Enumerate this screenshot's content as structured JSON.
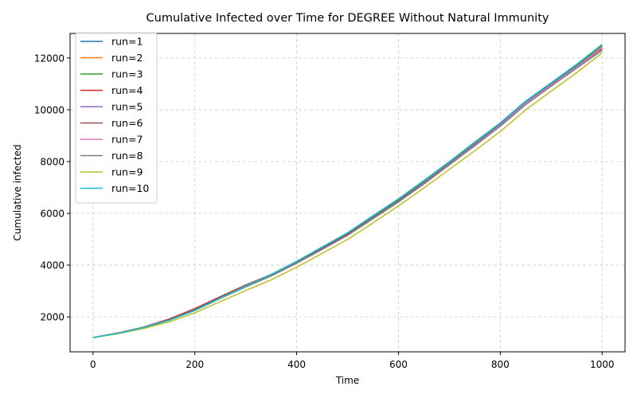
{
  "chart_data": {
    "type": "line",
    "title": "Cumulative Infected over Time for DEGREE Without Natural Immunity",
    "xlabel": "Time",
    "ylabel": "Cumulative infected",
    "xlim": [
      -45,
      1045
    ],
    "ylim": [
      650,
      12950
    ],
    "xticks": [
      0,
      200,
      400,
      600,
      800,
      1000
    ],
    "yticks": [
      2000,
      4000,
      6000,
      8000,
      10000,
      12000
    ],
    "grid": true,
    "legend_position": "top-left",
    "x": [
      0,
      50,
      100,
      150,
      200,
      250,
      300,
      350,
      400,
      450,
      500,
      550,
      600,
      650,
      700,
      750,
      800,
      850,
      900,
      950,
      1000
    ],
    "series": [
      {
        "name": "run=1",
        "color": "#1f77b4",
        "values": [
          1200,
          1380,
          1600,
          1880,
          2250,
          2720,
          3180,
          3600,
          4100,
          4650,
          5200,
          5850,
          6500,
          7200,
          7950,
          8700,
          9450,
          10300,
          11000,
          11700,
          12500
        ]
      },
      {
        "name": "run=2",
        "color": "#ff7f0e",
        "values": [
          1200,
          1380,
          1600,
          1890,
          2270,
          2740,
          3200,
          3620,
          4120,
          4660,
          5210,
          5860,
          6510,
          7210,
          7950,
          8700,
          9460,
          10300,
          11000,
          11700,
          12450
        ]
      },
      {
        "name": "run=3",
        "color": "#2ca02c",
        "values": [
          1200,
          1380,
          1610,
          1900,
          2290,
          2760,
          3220,
          3640,
          4140,
          4680,
          5230,
          5880,
          6530,
          7240,
          7980,
          8730,
          9480,
          10330,
          11020,
          11720,
          12500
        ]
      },
      {
        "name": "run=4",
        "color": "#d62728",
        "values": [
          1200,
          1380,
          1610,
          1920,
          2320,
          2780,
          3230,
          3640,
          4130,
          4660,
          5200,
          5840,
          6480,
          7170,
          7910,
          8650,
          9400,
          10240,
          10950,
          11650,
          12350
        ]
      },
      {
        "name": "run=5",
        "color": "#9467bd",
        "values": [
          1200,
          1370,
          1600,
          1890,
          2280,
          2750,
          3200,
          3620,
          4120,
          4650,
          5190,
          5840,
          6490,
          7190,
          7930,
          8680,
          9430,
          10270,
          10980,
          11680,
          12400
        ]
      },
      {
        "name": "run=6",
        "color": "#8c564b",
        "values": [
          1200,
          1380,
          1600,
          1900,
          2300,
          2760,
          3210,
          3620,
          4110,
          4640,
          5180,
          5820,
          6470,
          7160,
          7900,
          8640,
          9390,
          10230,
          10940,
          11640,
          12350
        ]
      },
      {
        "name": "run=7",
        "color": "#e377c2",
        "values": [
          1200,
          1370,
          1590,
          1870,
          2250,
          2710,
          3160,
          3580,
          4070,
          4600,
          5150,
          5790,
          6440,
          7140,
          7880,
          8630,
          9390,
          10240,
          10950,
          11650,
          12380
        ]
      },
      {
        "name": "run=8",
        "color": "#7f7f7f",
        "values": [
          1200,
          1370,
          1590,
          1870,
          2250,
          2710,
          3160,
          3580,
          4080,
          4610,
          5150,
          5790,
          6440,
          7130,
          7870,
          8610,
          9360,
          10200,
          10910,
          11610,
          12300
        ]
      },
      {
        "name": "run=9",
        "color": "#bcbd22",
        "values": [
          1200,
          1350,
          1550,
          1810,
          2160,
          2590,
          3020,
          3430,
          3920,
          4450,
          4990,
          5630,
          6290,
          6980,
          7700,
          8420,
          9160,
          10000,
          10720,
          11440,
          12200
        ]
      },
      {
        "name": "run=10",
        "color": "#17becf",
        "values": [
          1200,
          1370,
          1590,
          1870,
          2250,
          2730,
          3190,
          3640,
          4150,
          4700,
          5250,
          5910,
          6560,
          7270,
          8000,
          8760,
          9500,
          10340,
          11050,
          11760,
          12530
        ]
      }
    ]
  }
}
